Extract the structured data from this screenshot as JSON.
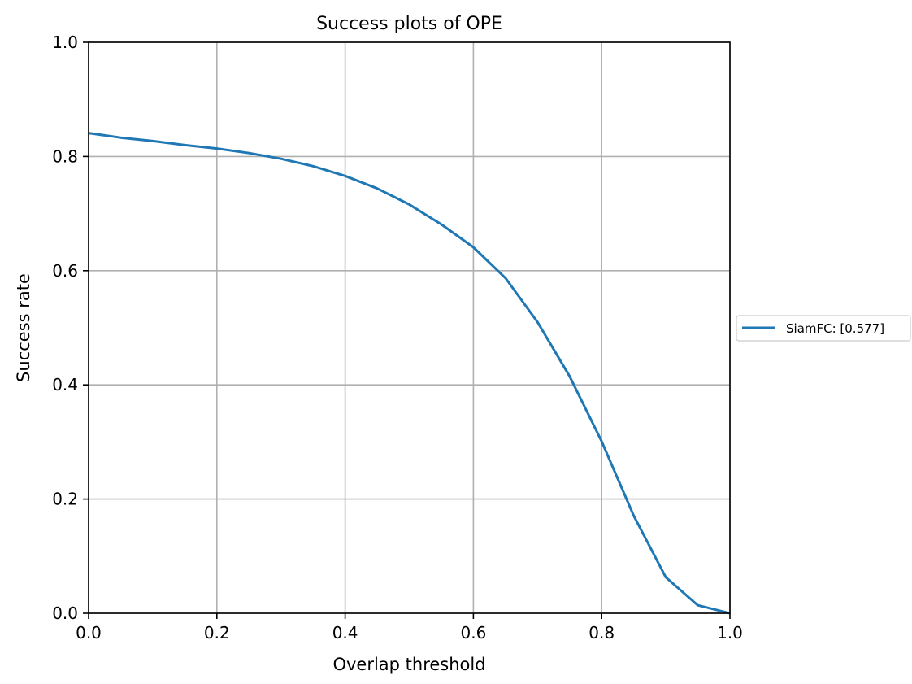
{
  "chart_data": {
    "type": "line",
    "title": "Success plots of OPE",
    "xlabel": "Overlap threshold",
    "ylabel": "Success rate",
    "xlim": [
      0.0,
      1.0
    ],
    "ylim": [
      0.0,
      1.0
    ],
    "xticks": [
      "0.0",
      "0.2",
      "0.4",
      "0.6",
      "0.8",
      "1.0"
    ],
    "yticks": [
      "0.0",
      "0.2",
      "0.4",
      "0.6",
      "0.8",
      "1.0"
    ],
    "grid": true,
    "legend_position": "outside right, centered",
    "x": [
      0.0,
      0.05,
      0.1,
      0.15,
      0.2,
      0.25,
      0.3,
      0.35,
      0.4,
      0.45,
      0.5,
      0.55,
      0.6,
      0.65,
      0.7,
      0.75,
      0.8,
      0.85,
      0.9,
      0.95,
      1.0
    ],
    "series": [
      {
        "name": "SiamFC: [0.577]",
        "color": "#1f77b4",
        "values": [
          0.841,
          0.833,
          0.827,
          0.82,
          0.814,
          0.806,
          0.796,
          0.783,
          0.766,
          0.744,
          0.716,
          0.681,
          0.641,
          0.587,
          0.51,
          0.415,
          0.301,
          0.171,
          0.063,
          0.014,
          0.0
        ]
      }
    ]
  },
  "colors": {
    "grid": "#b0b0b0",
    "axes": "#000000",
    "legend_border": "#cccccc"
  }
}
